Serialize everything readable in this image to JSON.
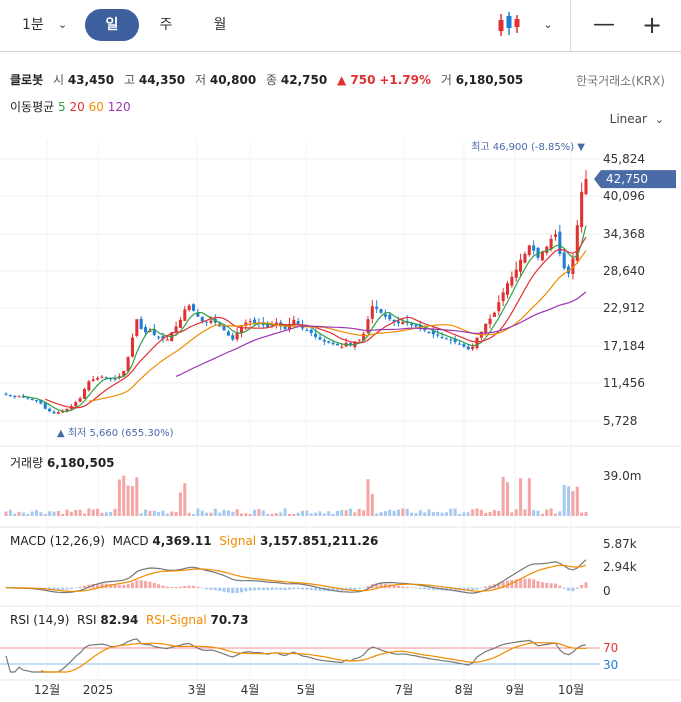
{
  "toolbar": {
    "interval": "1분",
    "tabs": [
      "일",
      "주",
      "월"
    ],
    "active_tab": "일",
    "minus": "—",
    "plus": "+"
  },
  "stock": {
    "name": "클로봇",
    "open_label": "시",
    "open": "43,450",
    "high_label": "고",
    "high": "44,350",
    "low_label": "저",
    "low": "40,800",
    "close_label": "종",
    "close": "42,750",
    "change": "▲ 750",
    "change_pct": "+1.79%",
    "volume_label": "거",
    "volume": "6,180,505",
    "exchange": "한국거래소(KRX)"
  },
  "moving_average": {
    "label": "이동평균",
    "periods": [
      {
        "value": "5",
        "color": "#2f9e44"
      },
      {
        "value": "20",
        "color": "#e03131"
      },
      {
        "value": "60",
        "color": "#f08c00"
      },
      {
        "value": "120",
        "color": "#9c36b5"
      }
    ]
  },
  "scale_mode": "Linear",
  "colors": {
    "up": "#e03131",
    "down": "#1c7ed6",
    "accent": "#4a6aa8",
    "macd_line": "#777777",
    "signal_line": "#f08c00",
    "grid": "#efefef"
  },
  "chart_data": [
    {
      "type": "candlestick",
      "price_axis_ticks": [
        "45,824",
        "40,096",
        "34,368",
        "28,640",
        "22,912",
        "17,184",
        "11,456",
        "5,728"
      ],
      "current_price_tag": "42,750",
      "high_marker": "최고 46,900 (-8.85%) ▼",
      "low_marker": "▲ 최저 5,660 (655.30%)",
      "x_tick_labels": [
        "12월",
        "2025",
        "3월",
        "4월",
        "5월",
        "7월",
        "8월",
        "9월",
        "10월"
      ],
      "ylim": [
        4800,
        48000
      ],
      "close_series": [
        9800,
        9600,
        9400,
        9500,
        9300,
        9200,
        9000,
        8800,
        8400,
        7600,
        7200,
        6900,
        7100,
        7300,
        7600,
        8000,
        8600,
        9200,
        10600,
        11800,
        12100,
        12300,
        12500,
        12400,
        12100,
        12200,
        12600,
        13400,
        15500,
        18500,
        21300,
        19800,
        19300,
        19600,
        18900,
        18600,
        18300,
        18200,
        19300,
        20200,
        21200,
        22800,
        23400,
        22600,
        21700,
        21000,
        20800,
        21100,
        20800,
        20200,
        19600,
        18800,
        18200,
        19200,
        20200,
        20800,
        21000,
        20600,
        20700,
        20400,
        20100,
        20500,
        20800,
        20200,
        19800,
        20600,
        21200,
        20600,
        19900,
        19600,
        19200,
        18600,
        18200,
        17900,
        17700,
        17500,
        17300,
        17100,
        17700,
        17300,
        17900,
        18200,
        19100,
        21300,
        23300,
        22900,
        22300,
        21700,
        21300,
        20900,
        20700,
        20900,
        20700,
        20400,
        20200,
        19800,
        19600,
        19300,
        19000,
        18800,
        18500,
        18300,
        18100,
        17800,
        17500,
        17100,
        16700,
        17100,
        18500,
        19400,
        20600,
        21400,
        22300,
        23900,
        25400,
        26800,
        27800,
        28900,
        30400,
        31300,
        32600,
        31800,
        30700,
        31600,
        32400,
        33600,
        34300,
        31300,
        29100,
        28300,
        30600,
        35700,
        40800,
        42750
      ],
      "volume_ticks": [
        "39.0m"
      ],
      "volume_label": "거래량",
      "volume_value": "6,180,505"
    },
    {
      "type": "line",
      "name": "MACD (12,26,9)",
      "macd_label": "MACD",
      "macd_value": "4,369.11",
      "signal_label": "Signal",
      "signal_value": "3,157.851,211.26",
      "y_ticks": [
        "5.87k",
        "2.94k",
        "0"
      ],
      "ylim": [
        -600,
        5870
      ]
    },
    {
      "type": "line",
      "name": "RSI (14,9)",
      "rsi_label": "RSI",
      "rsi_value": "82.94",
      "signal_label": "RSI-Signal",
      "signal_value": "70.73",
      "levels": [
        "70",
        "30"
      ],
      "ylim": [
        0,
        100
      ]
    }
  ]
}
